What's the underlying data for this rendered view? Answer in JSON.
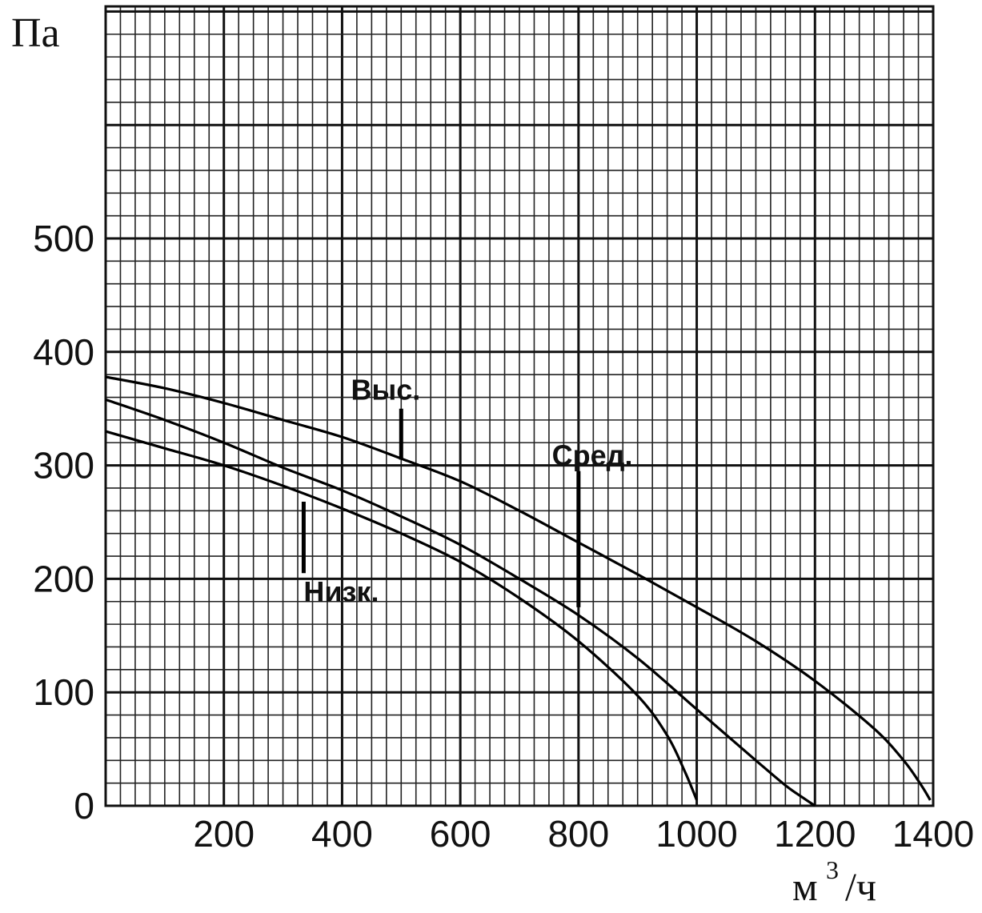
{
  "chart_data": {
    "type": "line",
    "ylabel": "Па",
    "xlabel_base": "м",
    "xlabel_sup": "3",
    "xlabel_tail": "/ч",
    "xlim": [
      0,
      1400
    ],
    "ylim": [
      0,
      500
    ],
    "x_ticks": [
      "200",
      "400",
      "600",
      "800",
      "1000",
      "1200",
      "1400"
    ],
    "x_tick_values": [
      200,
      400,
      600,
      800,
      1000,
      1200,
      1400
    ],
    "y_ticks": [
      "0",
      "100",
      "200",
      "300",
      "400",
      "500"
    ],
    "y_tick_values": [
      0,
      100,
      200,
      300,
      400,
      500
    ],
    "grid": true,
    "series": [
      {
        "name": "Выс.",
        "x": [
          0,
          100,
          200,
          300,
          400,
          500,
          600,
          700,
          800,
          900,
          1000,
          1100,
          1200,
          1300,
          1350,
          1380,
          1395
        ],
        "y": [
          378,
          368,
          355,
          340,
          325,
          306,
          286,
          260,
          232,
          204,
          175,
          145,
          110,
          68,
          40,
          18,
          5
        ]
      },
      {
        "name": "Сред.",
        "x": [
          0,
          100,
          200,
          300,
          400,
          500,
          600,
          700,
          800,
          900,
          1000,
          1100,
          1150,
          1180,
          1200
        ],
        "y": [
          358,
          340,
          320,
          298,
          278,
          255,
          230,
          200,
          168,
          130,
          85,
          40,
          18,
          7,
          0
        ]
      },
      {
        "name": "Низк.",
        "x": [
          0,
          100,
          200,
          300,
          400,
          500,
          600,
          700,
          800,
          900,
          950,
          980,
          1000
        ],
        "y": [
          330,
          315,
          300,
          282,
          262,
          240,
          215,
          183,
          145,
          97,
          62,
          30,
          5
        ]
      }
    ],
    "annotations": [
      {
        "text": "Выс.",
        "line_x": 500,
        "line_y": [
          305,
          350
        ],
        "text_x": 415,
        "text_y": 358
      },
      {
        "text": "Сред.",
        "line_x": 800,
        "line_y": [
          175,
          295
        ],
        "text_x": 755,
        "text_y": 300
      },
      {
        "text": "Низк.",
        "line_x": 335,
        "line_y": [
          205,
          268
        ],
        "text_x": 335,
        "text_y": 180
      }
    ]
  }
}
